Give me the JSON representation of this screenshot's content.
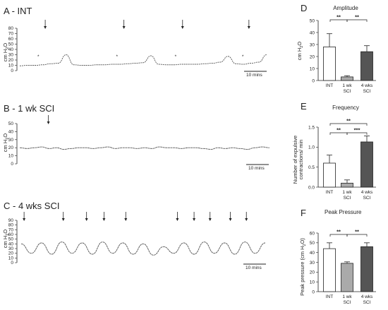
{
  "chart_data": [
    {
      "type": "line",
      "panel": "A",
      "title": "A - INT",
      "ylabel": "cm H2O",
      "yticks": [
        "0",
        "10",
        "20",
        "30",
        "40",
        "50",
        "60",
        "70",
        "80"
      ],
      "ylim": [
        0,
        80
      ],
      "scale_bar": "10 mins",
      "series": [
        {
          "x": [
            0,
            10,
            20,
            30,
            40,
            50,
            60,
            70,
            80,
            90,
            100,
            110,
            120,
            130,
            140,
            150,
            160,
            170,
            180,
            190,
            200,
            210,
            220,
            230,
            240,
            250,
            260,
            270,
            280,
            290,
            300,
            310,
            320
          ],
          "values": [
            9,
            10,
            10,
            11,
            13,
            14,
            30,
            11,
            10,
            10,
            11,
            11,
            12,
            12,
            13,
            14,
            15,
            28,
            12,
            11,
            11,
            12,
            12,
            12,
            13,
            14,
            16,
            27,
            13,
            12,
            14,
            16,
            30
          ]
        }
      ],
      "arrow_x": [
        33,
        135,
        211,
        297
      ],
      "asterisk_x": [
        24,
        126,
        202,
        289
      ]
    },
    {
      "type": "line",
      "panel": "B",
      "title": "B - 1 wk SCI",
      "ylabel": "cm H2O",
      "yticks": [
        "0",
        "10",
        "20",
        "30",
        "40",
        "50"
      ],
      "ylim": [
        0,
        50
      ],
      "scale_bar": "10 mins",
      "series": [
        {
          "x": [
            0,
            10,
            20,
            30,
            40,
            50,
            60,
            70,
            80,
            90,
            100,
            110,
            120,
            130,
            140,
            150,
            160,
            170,
            180,
            190,
            200,
            210,
            220,
            230,
            240,
            250,
            260,
            270,
            280,
            290,
            300,
            310,
            320,
            330,
            340
          ],
          "values": [
            20,
            19,
            20,
            21,
            19,
            20,
            18,
            19,
            20,
            20,
            19,
            20,
            21,
            19,
            20,
            20,
            19,
            20,
            19,
            21,
            20,
            20,
            19,
            20,
            20,
            19,
            18,
            20,
            19,
            20,
            19,
            18,
            20,
            21,
            20
          ]
        }
      ],
      "arrow_x": [
        39
      ]
    },
    {
      "type": "line",
      "panel": "C",
      "title": "C - 4 wks SCI",
      "ylabel": "cm H2O",
      "yticks": [
        "0",
        "10",
        "20",
        "30",
        "40",
        "50",
        "60",
        "70",
        "80",
        "90"
      ],
      "ylim": [
        0,
        90
      ],
      "scale_bar": "10 mins",
      "series": [
        {
          "x": [
            0,
            14,
            28,
            42,
            56,
            70,
            84,
            98,
            112,
            126,
            140,
            154,
            168,
            182,
            196,
            210,
            224,
            238,
            252,
            266,
            280,
            294,
            308,
            322,
            336
          ],
          "values": [
            40,
            20,
            42,
            18,
            44,
            20,
            42,
            18,
            44,
            20,
            42,
            18,
            40,
            16,
            34,
            20,
            42,
            18,
            44,
            20,
            42,
            18,
            44,
            20,
            42
          ]
        }
      ],
      "arrow_x": [
        4,
        58,
        90,
        114,
        144,
        215,
        238,
        260,
        288,
        310
      ]
    },
    {
      "type": "bar",
      "panel": "D",
      "title": "Amplitude",
      "ylabel": "cm H2O",
      "categories": [
        "INT",
        "1 wk SCI",
        "4 wks SCI"
      ],
      "values": [
        28,
        3,
        24
      ],
      "errors": [
        11,
        1,
        5
      ],
      "ylim": [
        0,
        50
      ],
      "yticks": [
        "0",
        "10",
        "20",
        "30",
        "40",
        "50"
      ],
      "significance": [
        "**",
        "**"
      ]
    },
    {
      "type": "bar",
      "panel": "E",
      "title": "Frequency",
      "ylabel": "Number of expulsive contractions/ min",
      "categories": [
        "INT",
        "1 wk SCI",
        "4 wks SCI"
      ],
      "values": [
        0.6,
        0.1,
        1.13
      ],
      "errors": [
        0.2,
        0.08,
        0.15
      ],
      "ylim": [
        0,
        1.5
      ],
      "yticks": [
        "0.0",
        "0.5",
        "1.0",
        "1.5"
      ],
      "significance": [
        "**",
        "**",
        "***"
      ]
    },
    {
      "type": "bar",
      "panel": "F",
      "title": "Peak Pressure",
      "ylabel": "Peak pressure (cm H2O)",
      "categories": [
        "INT",
        "1 wk SCI",
        "4 wks SCI"
      ],
      "values": [
        44,
        29,
        46
      ],
      "errors": [
        6,
        1.5,
        4
      ],
      "ylim": [
        0,
        60
      ],
      "yticks": [
        "0",
        "10",
        "20",
        "30",
        "40",
        "50",
        "60"
      ],
      "significance": [
        "**",
        "**"
      ]
    }
  ],
  "labels": {
    "D": "D",
    "E": "E",
    "F": "F",
    "cat_1wk_a": "1 wk",
    "cat_1wk_b": "SCI",
    "cat_4wk_a": "4 wks",
    "cat_4wk_b": "SCI"
  },
  "colors": {
    "trace": "#555555",
    "bar_int": "#ffffff",
    "bar_1wk": "#aaaaaa",
    "bar_4wk": "#555555",
    "axis": "#222222"
  }
}
